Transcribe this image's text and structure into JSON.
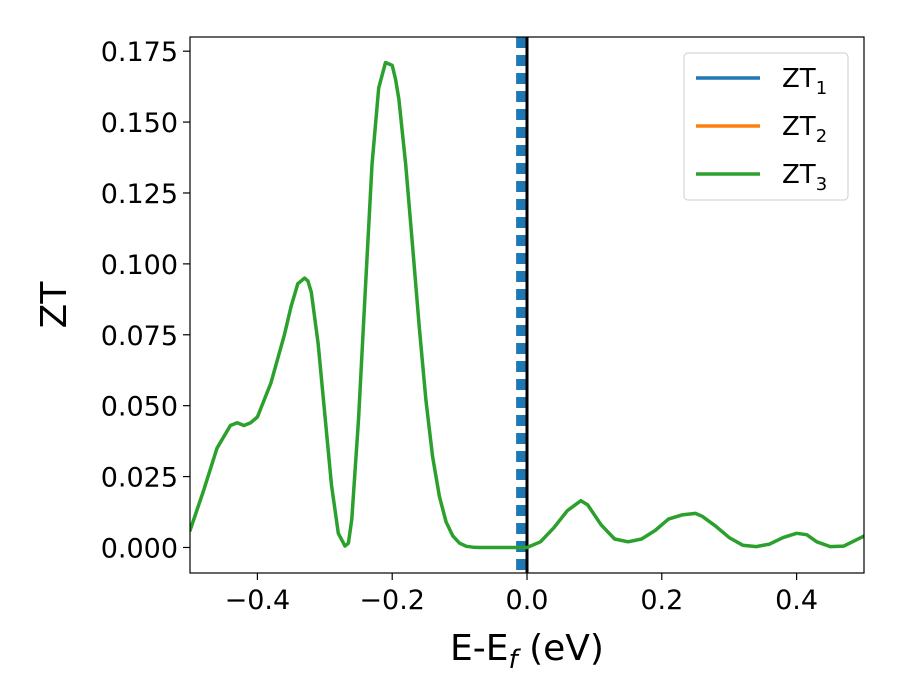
{
  "chart_data": {
    "type": "line",
    "title": "",
    "xlabel_main": "E-E",
    "xlabel_sub": "f",
    "xlabel_tail": " (eV)",
    "ylabel": "ZT",
    "xlim": [
      -0.5,
      0.5
    ],
    "ylim": [
      -0.009,
      0.18
    ],
    "xticks": [
      -0.4,
      -0.2,
      0.0,
      0.2,
      0.4
    ],
    "xtick_labels": [
      "−0.4",
      "−0.2",
      "0.0",
      "0.2",
      "0.4"
    ],
    "yticks": [
      0.0,
      0.025,
      0.05,
      0.075,
      0.1,
      0.125,
      0.15,
      0.175
    ],
    "ytick_labels": [
      "0.000",
      "0.025",
      "0.050",
      "0.075",
      "0.100",
      "0.125",
      "0.150",
      "0.175"
    ],
    "grid": false,
    "legend_position": "top-right",
    "vertical_lines": [
      {
        "x": -0.008,
        "style": "dashed",
        "color": "#1f77b4"
      },
      {
        "x": 0.0,
        "style": "solid",
        "color": "#000000"
      }
    ],
    "series": [
      {
        "name_main": "ZT",
        "name_sub": "1",
        "color": "#1f77b4",
        "x": [],
        "y": []
      },
      {
        "name_main": "ZT",
        "name_sub": "2",
        "color": "#ff7f0e",
        "x": [],
        "y": []
      },
      {
        "name_main": "ZT",
        "name_sub": "3",
        "color": "#2ca02c",
        "x": [
          -0.5,
          -0.48,
          -0.46,
          -0.44,
          -0.43,
          -0.42,
          -0.41,
          -0.4,
          -0.38,
          -0.36,
          -0.35,
          -0.34,
          -0.33,
          -0.325,
          -0.32,
          -0.31,
          -0.3,
          -0.29,
          -0.28,
          -0.27,
          -0.265,
          -0.26,
          -0.25,
          -0.24,
          -0.23,
          -0.22,
          -0.21,
          -0.2,
          -0.195,
          -0.19,
          -0.18,
          -0.17,
          -0.16,
          -0.15,
          -0.14,
          -0.13,
          -0.12,
          -0.11,
          -0.1,
          -0.09,
          -0.08,
          -0.07,
          -0.06,
          -0.05,
          -0.03,
          -0.01,
          0.0,
          0.02,
          0.04,
          0.06,
          0.08,
          0.09,
          0.11,
          0.13,
          0.15,
          0.17,
          0.19,
          0.21,
          0.23,
          0.25,
          0.26,
          0.28,
          0.3,
          0.32,
          0.34,
          0.36,
          0.38,
          0.4,
          0.415,
          0.43,
          0.45,
          0.47,
          0.5
        ],
        "y": [
          0.006,
          0.02,
          0.035,
          0.043,
          0.044,
          0.043,
          0.044,
          0.046,
          0.058,
          0.075,
          0.085,
          0.093,
          0.095,
          0.094,
          0.09,
          0.072,
          0.047,
          0.022,
          0.005,
          0.0005,
          0.0015,
          0.01,
          0.045,
          0.09,
          0.135,
          0.162,
          0.171,
          0.17,
          0.165,
          0.158,
          0.135,
          0.107,
          0.078,
          0.052,
          0.032,
          0.018,
          0.009,
          0.004,
          0.0015,
          0.0004,
          0.0001,
          0.0,
          0.0,
          0.0,
          0.0,
          0.0,
          0.0,
          0.002,
          0.007,
          0.013,
          0.0165,
          0.015,
          0.008,
          0.003,
          0.002,
          0.003,
          0.006,
          0.01,
          0.0115,
          0.012,
          0.011,
          0.0075,
          0.0035,
          0.0008,
          0.0003,
          0.0012,
          0.0035,
          0.005,
          0.0045,
          0.002,
          0.0003,
          0.0005,
          0.004
        ]
      }
    ]
  }
}
